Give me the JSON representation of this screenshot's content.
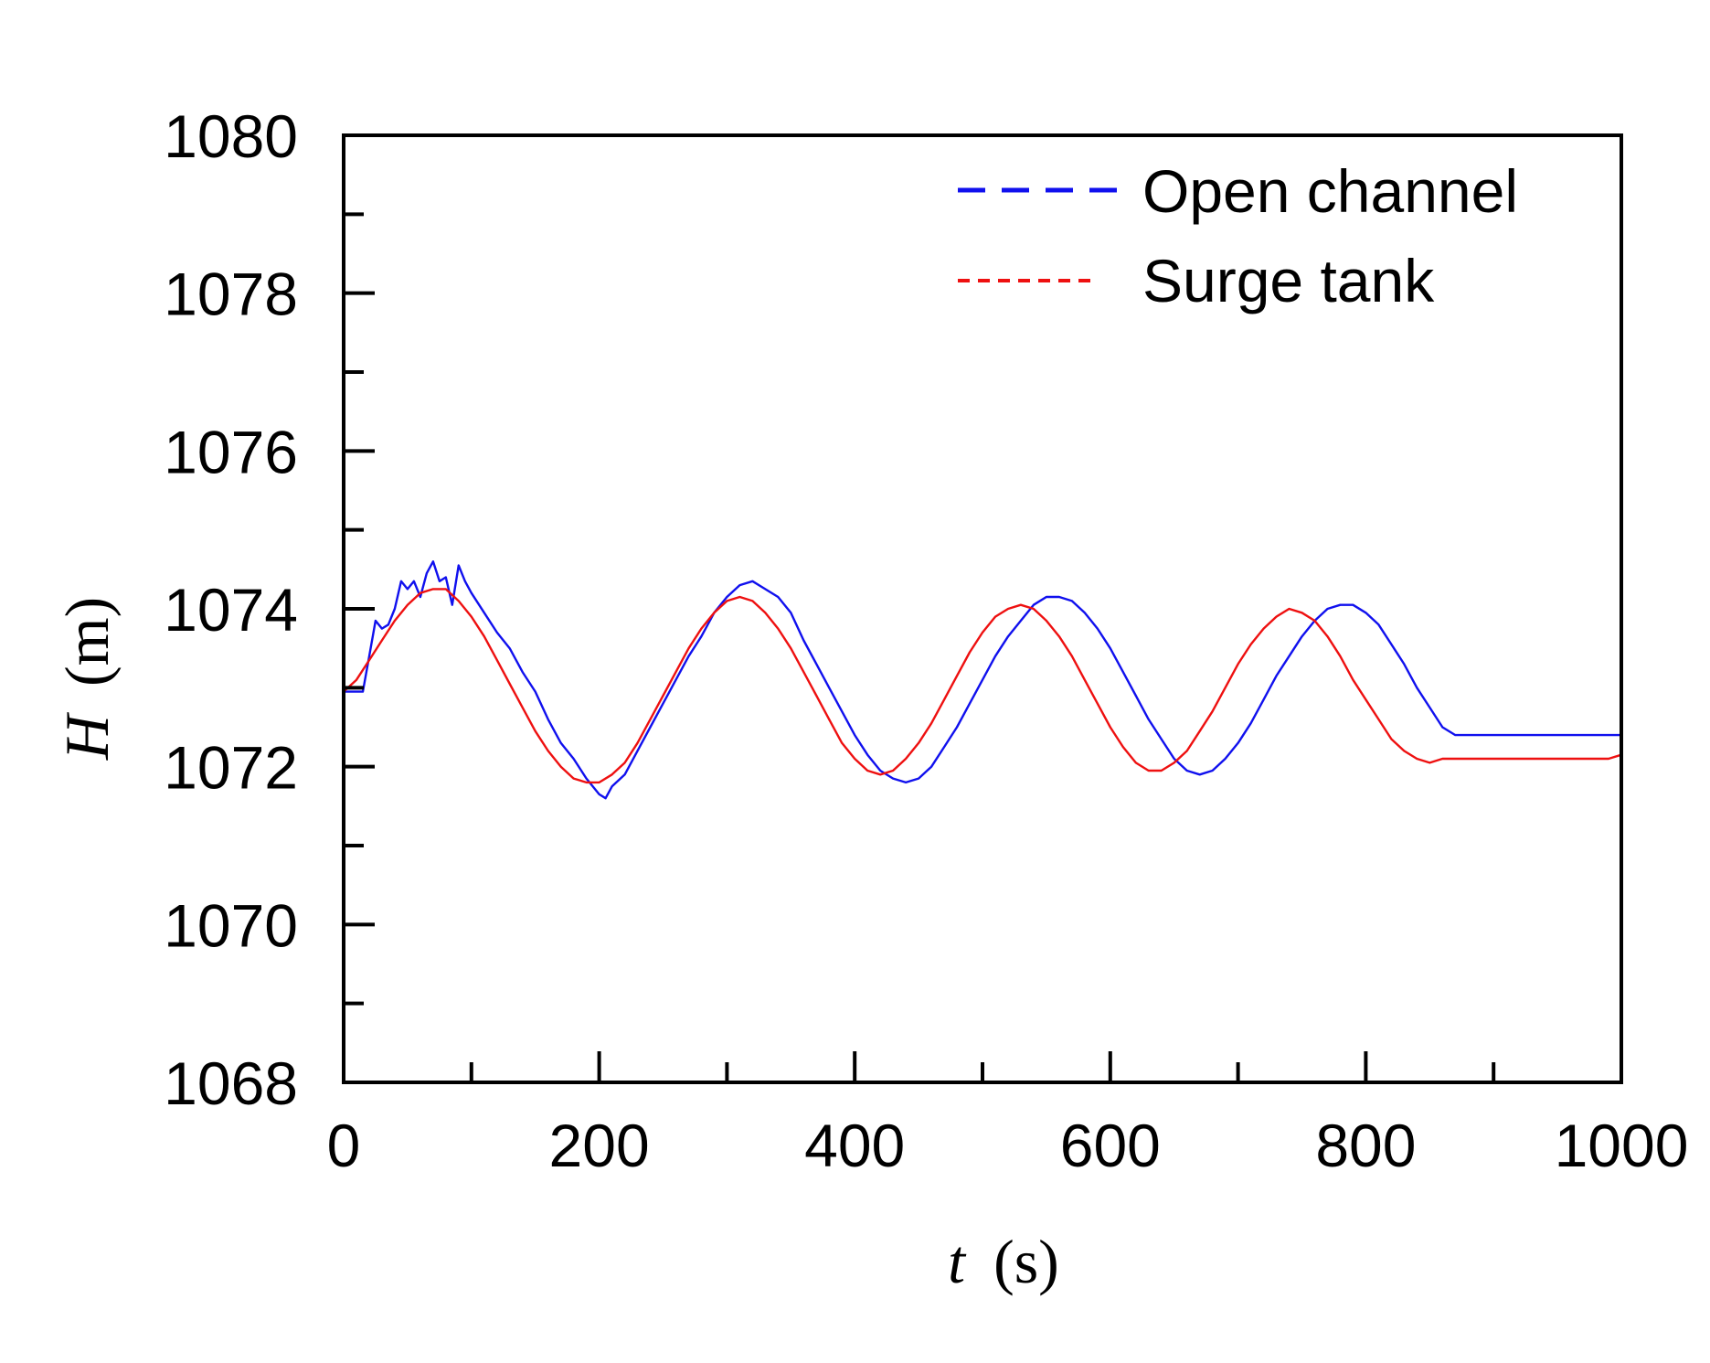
{
  "chart_data": {
    "type": "line",
    "title": "",
    "xlabel": {
      "symbol": "t",
      "unit": "(s)"
    },
    "ylabel": {
      "symbol": "H",
      "unit": "(m)"
    },
    "xlim": [
      0,
      1000
    ],
    "ylim": [
      1068,
      1080
    ],
    "xticks": [
      0,
      200,
      400,
      600,
      800,
      1000
    ],
    "xtick_labels": [
      "0",
      "200",
      "400",
      "600",
      "800",
      "1000"
    ],
    "x_minor_ticks": [
      100,
      300,
      500,
      700,
      900
    ],
    "yticks": [
      1068,
      1070,
      1072,
      1074,
      1076,
      1078,
      1080
    ],
    "ytick_labels": [
      "1068",
      "1070",
      "1072",
      "1074",
      "1076",
      "1078",
      "1080"
    ],
    "y_minor_ticks": [
      1069,
      1071,
      1073,
      1075,
      1077,
      1079
    ],
    "grid": false,
    "legend": {
      "position": "top-right"
    },
    "series": [
      {
        "name": "Open channel",
        "color": "#1010ee",
        "linestyle": "dashed",
        "x": [
          0,
          15,
          20,
          25,
          30,
          35,
          40,
          45,
          50,
          55,
          60,
          65,
          70,
          75,
          80,
          85,
          90,
          95,
          100,
          110,
          120,
          130,
          140,
          150,
          160,
          170,
          180,
          190,
          200,
          205,
          210,
          220,
          230,
          240,
          250,
          260,
          270,
          280,
          290,
          300,
          310,
          320,
          330,
          340,
          350,
          360,
          370,
          380,
          390,
          400,
          410,
          420,
          430,
          440,
          450,
          460,
          470,
          480,
          490,
          500,
          510,
          520,
          530,
          540,
          550,
          560,
          570,
          580,
          590,
          600,
          610,
          620,
          630,
          640,
          650,
          660,
          670,
          680,
          690,
          700,
          710,
          720,
          730,
          740,
          750,
          760,
          770,
          780,
          790,
          800,
          810,
          820,
          830,
          840,
          850,
          860,
          870,
          880,
          890,
          900,
          910,
          920,
          930,
          940,
          950,
          960,
          970,
          980,
          990,
          1000
        ],
        "y": [
          1072.95,
          1072.95,
          1073.4,
          1073.85,
          1073.75,
          1073.8,
          1074.0,
          1074.35,
          1074.25,
          1074.35,
          1074.15,
          1074.45,
          1074.6,
          1074.35,
          1074.4,
          1074.05,
          1074.55,
          1074.35,
          1074.2,
          1073.95,
          1073.7,
          1073.5,
          1073.2,
          1072.95,
          1072.6,
          1072.3,
          1072.1,
          1071.85,
          1071.65,
          1071.6,
          1071.75,
          1071.9,
          1072.2,
          1072.5,
          1072.8,
          1073.1,
          1073.4,
          1073.65,
          1073.95,
          1074.15,
          1074.3,
          1074.35,
          1074.25,
          1074.15,
          1073.95,
          1073.6,
          1073.3,
          1073.0,
          1072.7,
          1072.4,
          1072.15,
          1071.95,
          1071.85,
          1071.8,
          1071.85,
          1072.0,
          1072.25,
          1072.5,
          1072.8,
          1073.1,
          1073.4,
          1073.65,
          1073.85,
          1074.05,
          1074.15,
          1074.15,
          1074.1,
          1073.95,
          1073.75,
          1073.5,
          1073.2,
          1072.9,
          1072.6,
          1072.35,
          1072.1,
          1071.95,
          1071.9,
          1071.95,
          1072.1,
          1072.3,
          1072.55,
          1072.85,
          1073.15,
          1073.4,
          1073.65,
          1073.85,
          1074.0,
          1074.05,
          1074.05,
          1073.95,
          1073.8,
          1073.55,
          1073.3,
          1073.0,
          1072.75,
          1072.5,
          1072.4,
          1072.4,
          1072.4,
          1072.4,
          1072.4,
          1072.4,
          1072.4,
          1072.4,
          1072.4,
          1072.4,
          1072.4,
          1072.4,
          1072.4,
          1072.4
        ]
      },
      {
        "name": "Surge tank",
        "color": "#ee1010",
        "linestyle": "dotted",
        "x": [
          0,
          10,
          20,
          30,
          40,
          50,
          60,
          70,
          80,
          90,
          100,
          110,
          120,
          130,
          140,
          150,
          160,
          170,
          180,
          190,
          200,
          210,
          220,
          230,
          240,
          250,
          260,
          270,
          280,
          290,
          300,
          310,
          320,
          330,
          340,
          350,
          360,
          370,
          380,
          390,
          400,
          410,
          420,
          430,
          440,
          450,
          460,
          470,
          480,
          490,
          500,
          510,
          520,
          530,
          540,
          550,
          560,
          570,
          580,
          590,
          600,
          610,
          620,
          630,
          640,
          650,
          660,
          670,
          680,
          690,
          700,
          710,
          720,
          730,
          740,
          750,
          760,
          770,
          780,
          790,
          800,
          810,
          820,
          830,
          840,
          850,
          860,
          870,
          880,
          890,
          900,
          910,
          920,
          930,
          940,
          950,
          960,
          970,
          980,
          990,
          1000
        ],
        "y": [
          1072.95,
          1073.1,
          1073.35,
          1073.6,
          1073.85,
          1074.05,
          1074.2,
          1074.25,
          1074.25,
          1074.1,
          1073.9,
          1073.65,
          1073.35,
          1073.05,
          1072.75,
          1072.45,
          1072.2,
          1072.0,
          1071.85,
          1071.8,
          1071.8,
          1071.9,
          1072.05,
          1072.3,
          1072.6,
          1072.9,
          1073.2,
          1073.5,
          1073.75,
          1073.95,
          1074.1,
          1074.15,
          1074.1,
          1073.95,
          1073.75,
          1073.5,
          1073.2,
          1072.9,
          1072.6,
          1072.3,
          1072.1,
          1071.95,
          1071.9,
          1071.95,
          1072.1,
          1072.3,
          1072.55,
          1072.85,
          1073.15,
          1073.45,
          1073.7,
          1073.9,
          1074.0,
          1074.05,
          1074.0,
          1073.85,
          1073.65,
          1073.4,
          1073.1,
          1072.8,
          1072.5,
          1072.25,
          1072.05,
          1071.95,
          1071.95,
          1072.05,
          1072.2,
          1072.45,
          1072.7,
          1073.0,
          1073.3,
          1073.55,
          1073.75,
          1073.9,
          1074.0,
          1073.95,
          1073.85,
          1073.65,
          1073.4,
          1073.1,
          1072.85,
          1072.6,
          1072.35,
          1072.2,
          1072.1,
          1072.05,
          1072.1,
          1072.1,
          1072.1,
          1072.1,
          1072.1,
          1072.1,
          1072.1,
          1072.1,
          1072.1,
          1072.1,
          1072.1,
          1072.1,
          1072.1,
          1072.1,
          1072.15
        ]
      }
    ]
  }
}
